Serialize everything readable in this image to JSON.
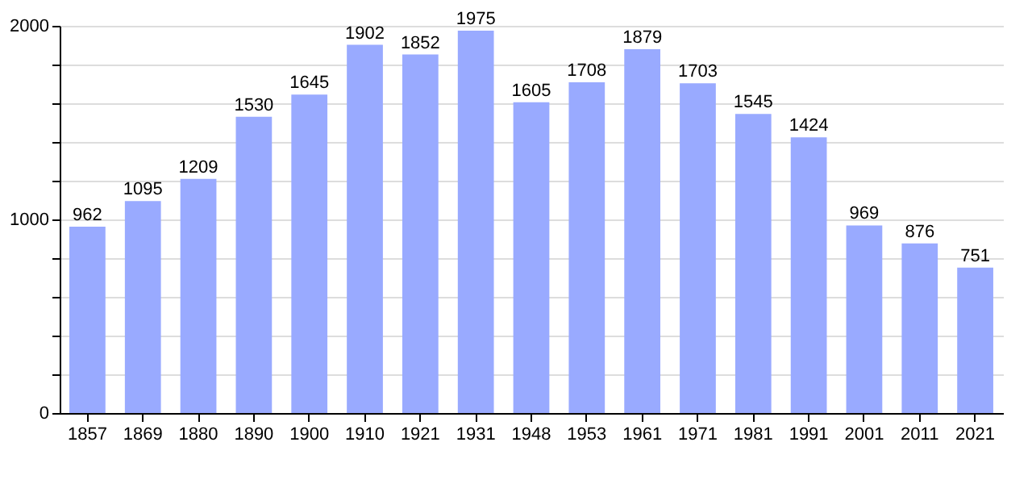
{
  "chart_data": {
    "type": "bar",
    "categories": [
      "1857",
      "1869",
      "1880",
      "1890",
      "1900",
      "1910",
      "1921",
      "1931",
      "1948",
      "1953",
      "1961",
      "1971",
      "1981",
      "1991",
      "2001",
      "2011",
      "2021"
    ],
    "values": [
      962,
      1095,
      1209,
      1530,
      1645,
      1902,
      1852,
      1975,
      1605,
      1708,
      1879,
      1703,
      1545,
      1424,
      969,
      876,
      751
    ],
    "color": "#99aaff",
    "ylim": [
      0,
      2000
    ],
    "yticks": [
      0,
      {
        "value": 200,
        "label": null
      },
      {
        "value": 400,
        "label": null
      },
      {
        "value": 600,
        "label": null
      },
      {
        "value": 800,
        "label": null
      },
      1000,
      {
        "value": 1200,
        "label": null
      },
      {
        "value": 1400,
        "label": null
      },
      {
        "value": 1600,
        "label": null
      },
      {
        "value": 1800,
        "label": null
      },
      2000
    ],
    "grid": true,
    "data_labels": true
  }
}
